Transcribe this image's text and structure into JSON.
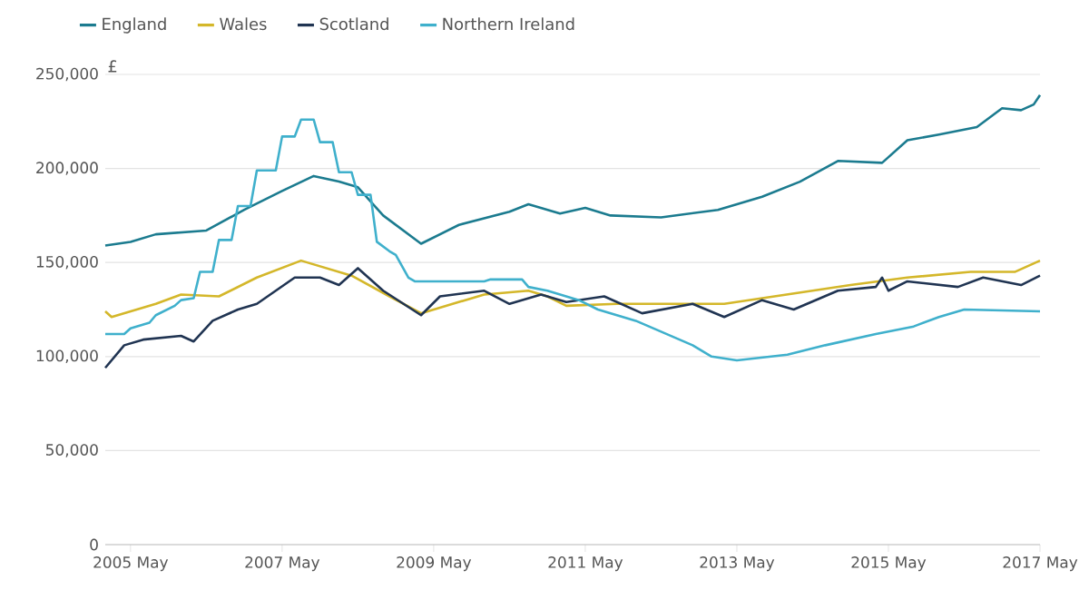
{
  "chart_data": {
    "type": "line",
    "ylabel": "£",
    "legend": "top left",
    "grid": "y",
    "marker": "none",
    "line_style": "solid",
    "xlim": [
      "2005-01",
      "2017-05"
    ],
    "xticks": [
      {
        "value": "2005-05",
        "label": "2005 May"
      },
      {
        "value": "2007-05",
        "label": "2007 May"
      },
      {
        "value": "2009-05",
        "label": "2009 May"
      },
      {
        "value": "2011-05",
        "label": "2011 May"
      },
      {
        "value": "2013-05",
        "label": "2013 May"
      },
      {
        "value": "2015-05",
        "label": "2015 May"
      },
      {
        "value": "2017-05",
        "label": "2017 May"
      }
    ],
    "ylim": [
      0,
      250000
    ],
    "yticks": [
      {
        "value": 0,
        "label": "0"
      },
      {
        "value": 50000,
        "label": "50,000"
      },
      {
        "value": 100000,
        "label": "100,000"
      },
      {
        "value": 150000,
        "label": "150,000"
      },
      {
        "value": 200000,
        "label": "200,000"
      },
      {
        "value": 250000,
        "label": "250,000"
      }
    ],
    "series": [
      {
        "name": "England",
        "color": "#1b7b8f",
        "x": [
          "2005-01",
          "2005-05",
          "2005-09",
          "2006-05",
          "2006-11",
          "2007-05",
          "2007-10",
          "2008-02",
          "2008-05",
          "2008-09",
          "2009-03",
          "2009-09",
          "2010-05",
          "2010-08",
          "2011-01",
          "2011-05",
          "2011-09",
          "2012-05",
          "2013-02",
          "2013-09",
          "2014-03",
          "2014-09",
          "2015-04",
          "2015-08",
          "2016-01",
          "2016-07",
          "2016-11",
          "2017-02",
          "2017-04",
          "2017-05"
        ],
        "values": [
          159000,
          161000,
          165000,
          167000,
          178000,
          188000,
          196000,
          193000,
          190000,
          175000,
          160000,
          170000,
          177000,
          181000,
          176000,
          179000,
          175000,
          174000,
          178000,
          185000,
          193000,
          204000,
          203000,
          215000,
          218000,
          222000,
          232000,
          231000,
          234000,
          239000
        ]
      },
      {
        "name": "Wales",
        "color": "#d4b72a",
        "x": [
          "2005-01",
          "2005-02",
          "2005-09",
          "2006-01",
          "2006-07",
          "2007-01",
          "2007-08",
          "2008-04",
          "2008-10",
          "2009-03",
          "2009-08",
          "2010-01",
          "2010-08",
          "2010-11",
          "2011-02",
          "2011-10",
          "2013-03",
          "2014-01",
          "2014-11",
          "2015-08",
          "2016-06",
          "2017-01",
          "2017-05"
        ],
        "values": [
          124000,
          121000,
          128000,
          133000,
          132000,
          142000,
          151000,
          143000,
          132000,
          123000,
          128000,
          133000,
          135000,
          132000,
          127000,
          128000,
          128000,
          133000,
          138000,
          142000,
          145000,
          145000,
          151000
        ]
      },
      {
        "name": "Scotland",
        "color": "#203452",
        "x": [
          "2005-01",
          "2005-04",
          "2005-07",
          "2006-01",
          "2006-03",
          "2006-06",
          "2006-10",
          "2007-01",
          "2007-04",
          "2007-07",
          "2007-11",
          "2008-02",
          "2008-05",
          "2008-09",
          "2009-03",
          "2009-06",
          "2010-01",
          "2010-05",
          "2010-10",
          "2011-02",
          "2011-08",
          "2012-02",
          "2012-10",
          "2013-03",
          "2013-09",
          "2014-02",
          "2014-09",
          "2015-03",
          "2015-04",
          "2015-05",
          "2015-08",
          "2016-04",
          "2016-08",
          "2017-02",
          "2017-05"
        ],
        "values": [
          94000,
          106000,
          109000,
          111000,
          108000,
          119000,
          125000,
          128000,
          135000,
          142000,
          142000,
          138000,
          147000,
          135000,
          122000,
          132000,
          135000,
          128000,
          133000,
          129000,
          132000,
          123000,
          128000,
          121000,
          130000,
          125000,
          135000,
          137000,
          142000,
          135000,
          140000,
          137000,
          142000,
          138000,
          143000
        ]
      },
      {
        "name": "Northern Ireland",
        "color": "#3fb0cc",
        "x": [
          "2005-01",
          "2005-04",
          "2005-05",
          "2005-08",
          "2005-09",
          "2005-12",
          "2006-01",
          "2006-03",
          "2006-04",
          "2006-06",
          "2006-07",
          "2006-09",
          "2006-10",
          "2006-12",
          "2007-01",
          "2007-04",
          "2007-05",
          "2007-07",
          "2007-08",
          "2007-10",
          "2007-11",
          "2008-01",
          "2008-02",
          "2008-04",
          "2008-05",
          "2008-07",
          "2008-08",
          "2008-10",
          "2008-11",
          "2009-01",
          "2009-02",
          "2010-01",
          "2010-02",
          "2010-07",
          "2010-08",
          "2010-11",
          "2011-04",
          "2011-07",
          "2012-01",
          "2012-10",
          "2013-01",
          "2013-05",
          "2014-01",
          "2014-07",
          "2015-03",
          "2015-09",
          "2016-01",
          "2016-05",
          "2017-05"
        ],
        "values": [
          112000,
          112000,
          115000,
          118000,
          122000,
          127000,
          130000,
          131000,
          145000,
          145000,
          162000,
          162000,
          180000,
          180000,
          199000,
          199000,
          217000,
          217000,
          226000,
          226000,
          214000,
          214000,
          198000,
          198000,
          186000,
          186000,
          161000,
          156000,
          154000,
          142000,
          140000,
          140000,
          141000,
          141000,
          137000,
          135000,
          130000,
          125000,
          119000,
          106000,
          100000,
          98000,
          101000,
          106000,
          112000,
          116000,
          121000,
          125000,
          124000
        ]
      }
    ]
  }
}
